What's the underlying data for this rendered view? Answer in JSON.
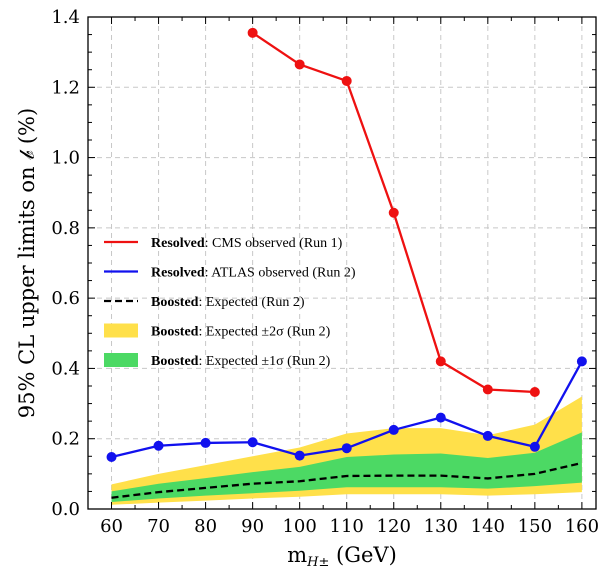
{
  "chart_data": {
    "type": "line",
    "x": [
      60,
      70,
      80,
      90,
      100,
      110,
      120,
      130,
      140,
      150,
      160
    ],
    "xlabel_main": "m",
    "xlabel_sub": "H±",
    "xlabel_unit": " (GeV)",
    "ylabel": "95% CL upper limits on 𝒷 (%)",
    "xlim": [
      55,
      163
    ],
    "ylim": [
      0,
      1.4
    ],
    "xticks": [
      "60",
      "70",
      "80",
      "90",
      "100",
      "110",
      "120",
      "130",
      "140",
      "150",
      "160"
    ],
    "yticks": [
      "0.0",
      "0.2",
      "0.4",
      "0.6",
      "0.8",
      "1.0",
      "1.2",
      "1.4"
    ],
    "grid": true,
    "legend_position": "center-left",
    "bands": [
      {
        "name_bold": "Boosted",
        "name_rest": ": Expected ±2σ (Run 2)",
        "color": "#ffe04a",
        "x": [
          60,
          70,
          80,
          90,
          100,
          110,
          120,
          130,
          140,
          150,
          160
        ],
        "low": [
          0.012,
          0.018,
          0.024,
          0.03,
          0.035,
          0.042,
          0.042,
          0.042,
          0.038,
          0.042,
          0.048
        ],
        "high": [
          0.07,
          0.1,
          0.125,
          0.15,
          0.175,
          0.215,
          0.23,
          0.23,
          0.21,
          0.24,
          0.32
        ]
      },
      {
        "name_bold": "Boosted",
        "name_rest": ": Expected ±1σ (Run 2)",
        "color": "#4cd964",
        "x": [
          60,
          70,
          80,
          90,
          100,
          110,
          120,
          130,
          140,
          150,
          160
        ],
        "low": [
          0.02,
          0.03,
          0.038,
          0.045,
          0.052,
          0.062,
          0.062,
          0.062,
          0.058,
          0.065,
          0.075
        ],
        "high": [
          0.05,
          0.072,
          0.088,
          0.105,
          0.12,
          0.148,
          0.155,
          0.158,
          0.145,
          0.16,
          0.218
        ]
      }
    ],
    "series": [
      {
        "name_bold": "Resolved",
        "name_rest": ": CMS observed (Run 1)",
        "color": "#ee1111",
        "style": "solid",
        "markers": true,
        "x": [
          90,
          100,
          110,
          120,
          130,
          140,
          150
        ],
        "values": [
          1.355,
          1.265,
          1.218,
          0.843,
          0.42,
          0.34,
          0.333
        ]
      },
      {
        "name_bold": "Resolved",
        "name_rest": ": ATLAS observed (Run 2)",
        "color": "#1111ee",
        "style": "solid",
        "markers": true,
        "x": [
          60,
          70,
          80,
          90,
          100,
          110,
          120,
          130,
          140,
          150,
          160
        ],
        "values": [
          0.148,
          0.18,
          0.188,
          0.19,
          0.152,
          0.173,
          0.225,
          0.26,
          0.208,
          0.177,
          0.42
        ]
      },
      {
        "name_bold": "Boosted",
        "name_rest": ": Expected (Run 2)",
        "color": "#000000",
        "style": "dashed",
        "markers": false,
        "x": [
          60,
          70,
          80,
          90,
          100,
          110,
          120,
          130,
          140,
          150,
          160
        ],
        "values": [
          0.032,
          0.048,
          0.06,
          0.072,
          0.079,
          0.094,
          0.095,
          0.095,
          0.087,
          0.1,
          0.131
        ]
      }
    ],
    "legend_order": [
      "s0",
      "s1",
      "s2",
      "b0",
      "b1"
    ]
  }
}
